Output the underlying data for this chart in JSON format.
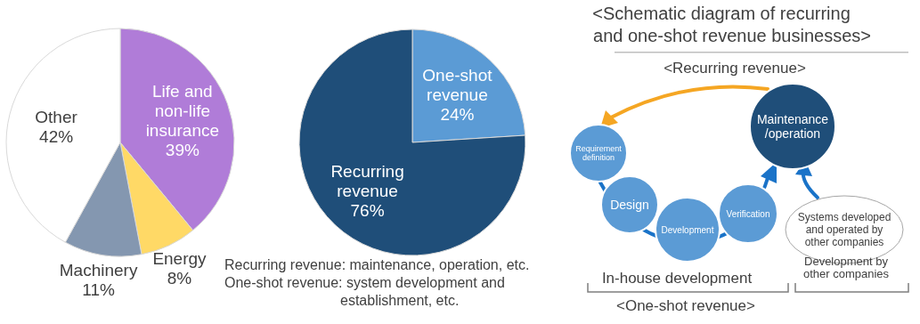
{
  "chart_data": [
    {
      "type": "pie",
      "categories": [
        "Life and non-life insurance",
        "Energy",
        "Machinery",
        "Other"
      ],
      "values": [
        39,
        8,
        11,
        42
      ],
      "value_labels": [
        "39%",
        "8%",
        "11%",
        "42%"
      ],
      "colors": [
        "#b07cd8",
        "#ffd966",
        "#8497b0",
        "#ffffff"
      ]
    },
    {
      "type": "pie",
      "categories": [
        "One-shot revenue",
        "Recurring revenue"
      ],
      "values": [
        24,
        76
      ],
      "value_labels": [
        "24%",
        "76%"
      ],
      "colors": [
        "#5b9bd5",
        "#1f4e79"
      ],
      "annotations": [
        "Recurring revenue: maintenance, operation, etc.",
        "One-shot revenue: system development and establishment, etc."
      ]
    },
    {
      "type": "other",
      "title": "<Schematic diagram of recurring and one-shot revenue businesses>",
      "annotations": [
        "<Recurring revenue>",
        "Maintenance /operation",
        "Requirement definition",
        "Design",
        "Development",
        "Verification",
        "Systems developed and operated by other companies",
        "In-house development",
        "Development by other companies",
        "<One-shot revenue>"
      ]
    }
  ]
}
